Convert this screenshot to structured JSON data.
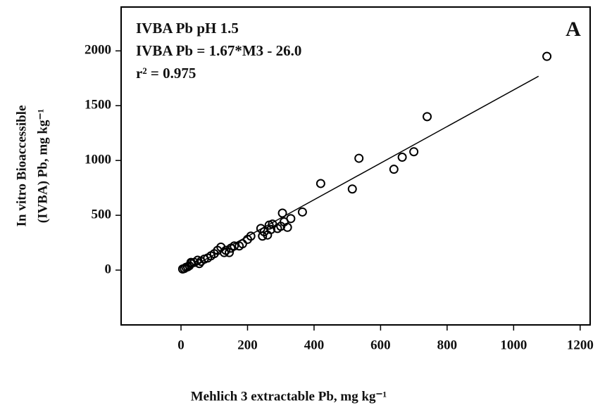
{
  "chart_data": {
    "type": "scatter",
    "annotations": [
      "IVBA Pb pH 1.5",
      "IVBA Pb = 1.67*M3 - 26.0",
      "r² = 0.975"
    ],
    "panel_label": "A",
    "xlabel": "Mehlich 3 extractable Pb, mg kg⁻¹",
    "ylabel": [
      "In vitro Bioaccessible",
      "(IVBA) Pb, mg kg⁻¹"
    ],
    "x": [
      1100,
      740,
      535,
      420,
      515,
      640,
      665,
      700,
      365,
      305,
      310,
      330,
      300,
      290,
      275,
      265,
      250,
      240,
      260,
      245,
      210,
      200,
      185,
      175,
      160,
      150,
      145,
      135,
      120,
      110,
      100,
      90,
      80,
      70,
      60,
      50,
      55,
      40,
      30,
      25,
      20,
      15,
      10,
      5,
      30,
      130,
      320,
      270
    ],
    "values": [
      1950,
      1400,
      1020,
      790,
      740,
      920,
      1030,
      1080,
      530,
      520,
      440,
      470,
      400,
      380,
      420,
      410,
      350,
      380,
      320,
      310,
      310,
      280,
      240,
      220,
      220,
      200,
      160,
      180,
      210,
      180,
      150,
      130,
      110,
      100,
      80,
      90,
      60,
      70,
      60,
      40,
      30,
      25,
      15,
      10,
      70,
      160,
      390,
      370
    ],
    "marker_color": "#000000",
    "fit": {
      "x": [
        15,
        1075
      ],
      "values": [
        -1,
        1769
      ]
    },
    "xlim": [
      -180,
      1230
    ],
    "ylim": [
      -500,
      2400
    ],
    "xticks": [
      0,
      200,
      400,
      600,
      800,
      1000,
      1200
    ],
    "yticks": [
      0,
      500,
      1000,
      1500,
      2000
    ]
  }
}
